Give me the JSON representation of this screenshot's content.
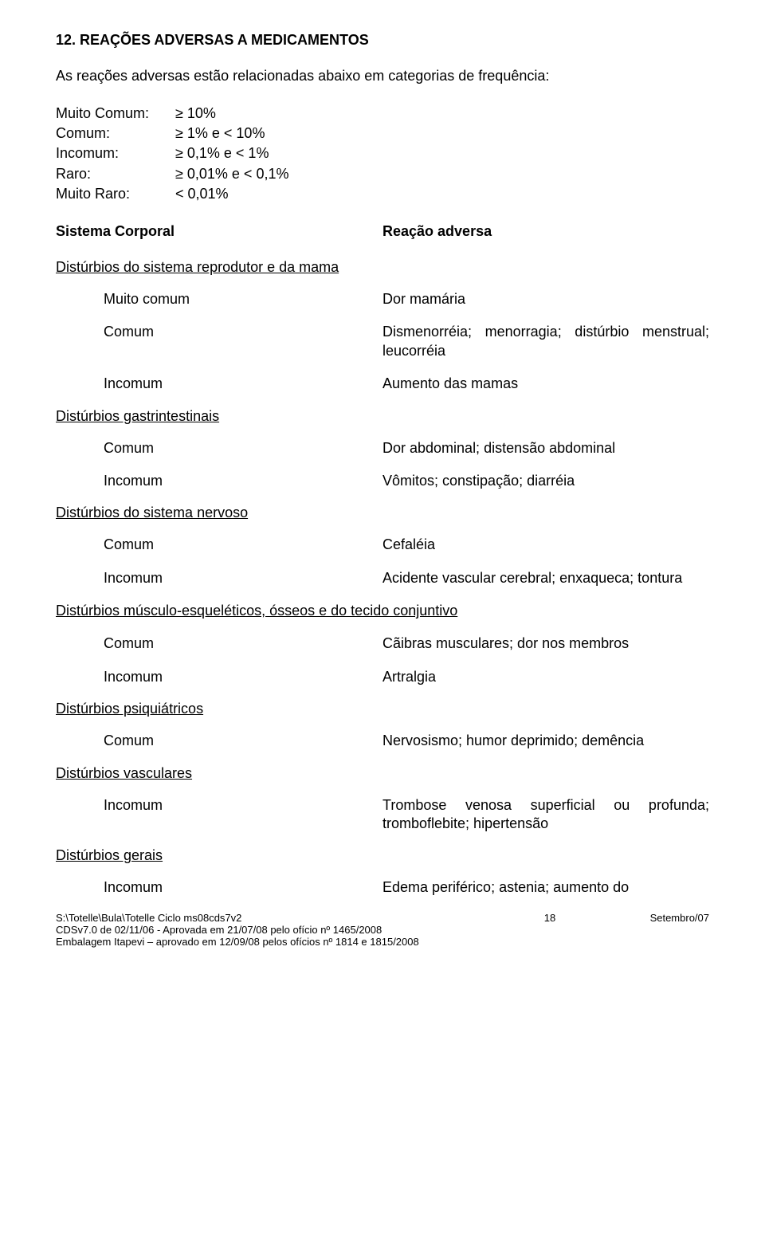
{
  "section_title": "12. REAÇÕES ADVERSAS A MEDICAMENTOS",
  "intro": "As reações adversas estão relacionadas abaixo em categorias de frequência:",
  "freq": [
    {
      "label": "Muito Comum:",
      "value": "≥ 10%"
    },
    {
      "label": "Comum:",
      "value": "≥ 1% e < 10%"
    },
    {
      "label": "Incomum:",
      "value": "≥ 0,1% e < 1%"
    },
    {
      "label": "Raro:",
      "value": "≥ 0,01% e < 0,1%"
    },
    {
      "label": "Muito Raro:",
      "value": "< 0,01%"
    }
  ],
  "col_header_left": "Sistema Corporal",
  "col_header_right": "Reação adversa",
  "groups": [
    {
      "title": "Distúrbios do sistema reprodutor e da mama",
      "entries": [
        {
          "freq": "Muito comum",
          "text": "Dor mamária"
        },
        {
          "freq": "Comum",
          "text": "Dismenorréia; menorragia; distúrbio menstrual; leucorréia"
        },
        {
          "freq": "Incomum",
          "text": "Aumento das mamas"
        }
      ]
    },
    {
      "title": "Distúrbios gastrintestinais",
      "entries": [
        {
          "freq": "Comum",
          "text": "Dor abdominal; distensão abdominal"
        },
        {
          "freq": "Incomum",
          "text": "Vômitos; constipação; diarréia"
        }
      ]
    },
    {
      "title": "Distúrbios do sistema nervoso",
      "entries": [
        {
          "freq": "Comum",
          "text": "Cefaléia"
        },
        {
          "freq": "Incomum",
          "text": "Acidente vascular cerebral; enxaqueca; tontura"
        }
      ]
    },
    {
      "title": "Distúrbios músculo-esqueléticos, ósseos e do tecido conjuntivo",
      "wide": true,
      "entries": [
        {
          "freq": "Comum",
          "text": "Cãibras musculares; dor nos membros"
        },
        {
          "freq": "Incomum",
          "text": "Artralgia"
        }
      ]
    },
    {
      "title": "Distúrbios psiquiátricos",
      "entries": [
        {
          "freq": "Comum",
          "text": "Nervosismo; humor deprimido; demência"
        }
      ]
    },
    {
      "title": "Distúrbios vasculares",
      "entries": [
        {
          "freq": "Incomum",
          "text": "Trombose venosa superficial ou profunda; tromboflebite; hipertensão"
        }
      ]
    },
    {
      "title": "Distúrbios gerais",
      "entries": [
        {
          "freq": "Incomum",
          "text": "Edema periférico; astenia; aumento do"
        }
      ]
    }
  ],
  "footer": {
    "line1": "S:\\Totelle\\Bula\\Totelle Ciclo ms08cds7v2",
    "page": "18",
    "date": "Setembro/07",
    "line2": "CDSv7.0 de 02/11/06 - Aprovada em 21/07/08 pelo ofício nº 1465/2008",
    "line3": "Embalagem Itapevi – aprovado em 12/09/08 pelos ofícios nº 1814 e 1815/2008"
  }
}
